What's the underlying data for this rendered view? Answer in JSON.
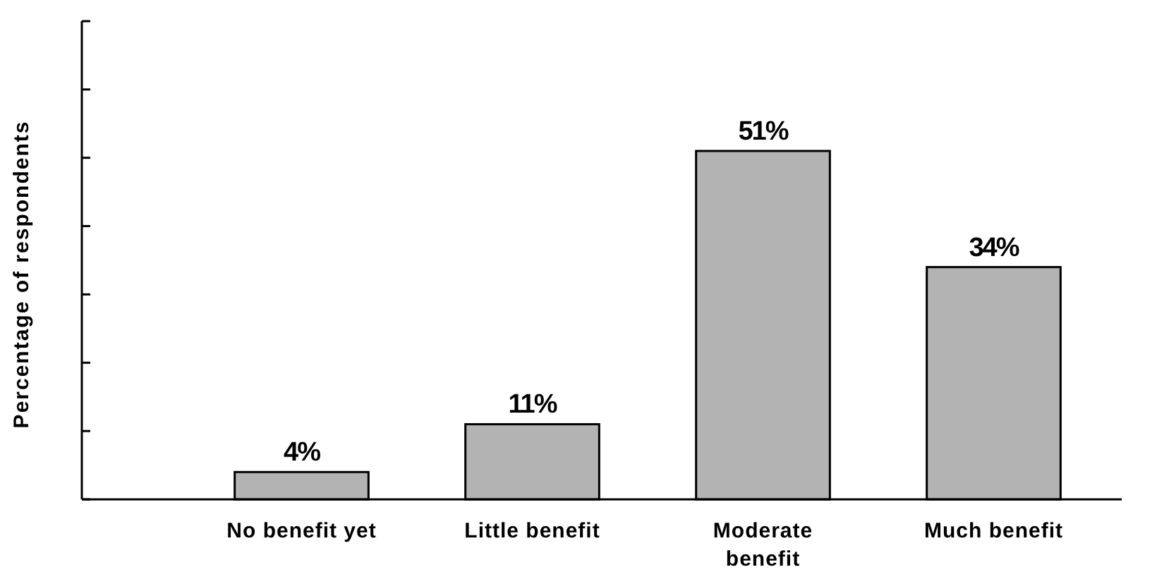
{
  "chart_data": {
    "type": "bar",
    "ylabel": "Percentage of respondents",
    "categories": [
      "No benefit yet",
      "Little benefit",
      "Moderate benefit",
      "Much benefit"
    ],
    "values": [
      4,
      11,
      51,
      34
    ],
    "color": "#b3b3b3",
    "ylim": [
      0,
      70
    ],
    "yticks": [
      {
        "value": 0,
        "label": null
      },
      {
        "value": 10,
        "label": null
      },
      {
        "value": 20,
        "label": null
      },
      {
        "value": 30,
        "label": null
      },
      {
        "value": 40,
        "label": null
      },
      {
        "value": 50,
        "label": null
      },
      {
        "value": 60,
        "label": null
      },
      {
        "value": 70,
        "label": null
      }
    ],
    "value_labels": [
      "4%",
      "11%",
      "51%",
      "34%"
    ],
    "tick_labels": "x"
  }
}
